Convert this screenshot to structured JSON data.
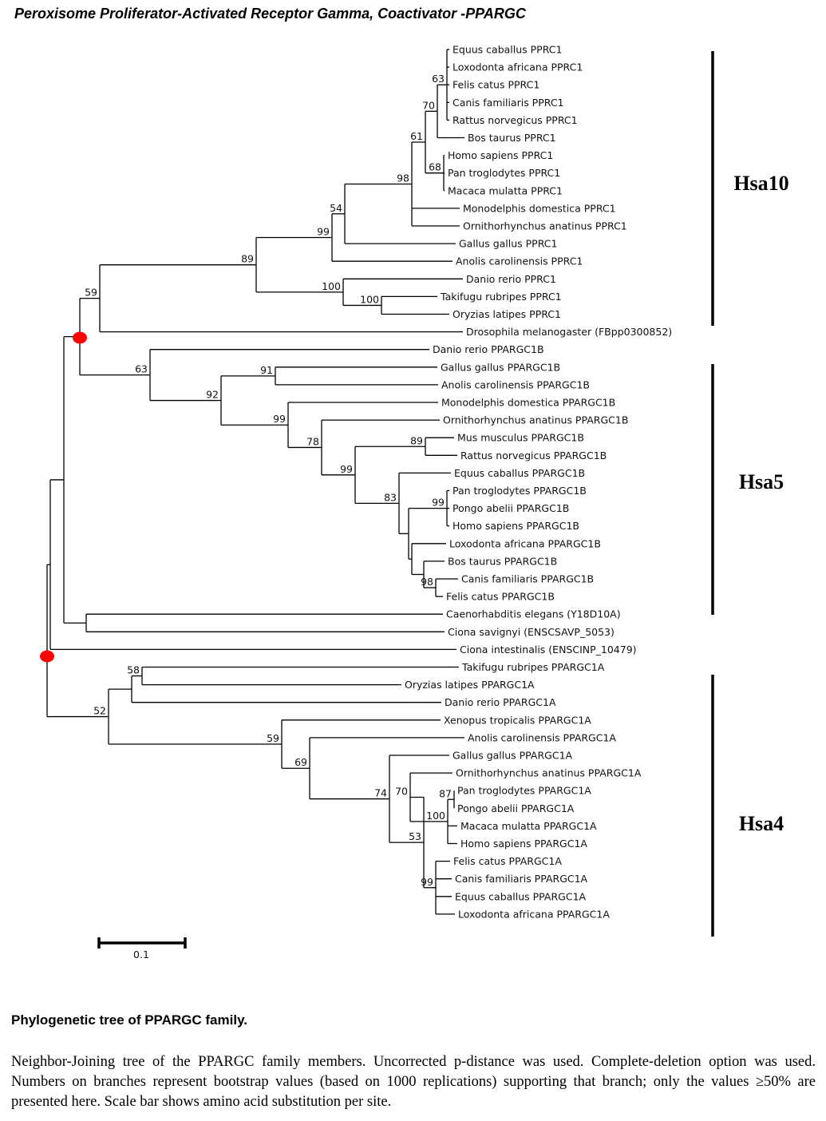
{
  "title": "Peroxisome Proliferator-Activated Receptor Gamma, Coactivator -PPARGC",
  "leaves": [
    "Equus caballus PPRC1",
    "Loxodonta africana PPRC1",
    "Felis catus PPRC1",
    "Canis familiaris PPRC1",
    "Rattus norvegicus PPRC1",
    "Bos taurus PPRC1",
    "Homo sapiens PPRC1",
    "Pan troglodytes PPRC1",
    "Macaca mulatta PPRC1",
    "Monodelphis domestica PPRC1",
    "Ornithorhynchus anatinus PPRC1",
    "Gallus gallus PPRC1",
    "Anolis carolinensis PPRC1",
    "Danio rerio PPRC1",
    "Takifugu rubripes PPRC1",
    "Oryzias latipes PPRC1",
    "Drosophila melanogaster (FBpp0300852)",
    "Danio rerio PPARGC1B",
    "Gallus gallus PPARGC1B",
    "Anolis carolinensis PPARGC1B",
    "Monodelphis domestica PPARGC1B",
    "Ornithorhynchus anatinus PPARGC1B",
    "Mus musculus PPARGC1B",
    "Rattus norvegicus PPARGC1B",
    "Equus caballus PPARGC1B",
    "Pan troglodytes PPARGC1B",
    "Pongo abelii PPARGC1B",
    "Homo sapiens PPARGC1B",
    "Loxodonta africana PPARGC1B",
    "Bos taurus PPARGC1B",
    "Canis familiaris PPARGC1B",
    "Felis catus PPARGC1B",
    "Caenorhabditis elegans  (Y18D10A)",
    "Ciona savignyi (ENSCSAVP_5053)",
    "Ciona intestinalis (ENSCINP_10479)",
    "Takifugu rubripes PPARGC1A",
    "Oryzias latipes PPARGC1A",
    "Danio rerio PPARGC1A",
    "Xenopus tropicalis PPARGC1A",
    "Anolis carolinensis PPARGC1A",
    "Gallus gallus PPARGC1A",
    "Ornithorhynchus anatinus PPARGC1A",
    "Pan troglodytes PPARGC1A",
    "Pongo abelii PPARGC1A",
    "Macaca mulatta PPARGC1A",
    "Homo sapiens PPARGC1A",
    "Felis catus PPARGC1A",
    "Canis familiaris PPARGC1A",
    "Equus caballus PPARGC1A",
    "Loxodonta africana PPARGC1A"
  ],
  "bootstrap": [
    "63",
    "70",
    "68",
    "61",
    "98",
    "54",
    "99",
    "100",
    "100",
    "89",
    "59",
    "91",
    "89",
    "99",
    "98",
    "83",
    "99",
    "78",
    "99",
    "92",
    "63",
    "58",
    "87",
    "100",
    "70",
    "99",
    "53",
    "74",
    "69",
    "59",
    "52"
  ],
  "clades": [
    "Hsa10",
    "Hsa5",
    "Hsa4"
  ],
  "scale_label": "0.1",
  "colors": {
    "duplication_marker": "#ff0000",
    "line": "#000000"
  },
  "caption": {
    "heading": "Phylogenetic tree of PPARGC family.",
    "body": "Neighbor-Joining tree of the  PPARGC family members. Uncorrected p-distance was used. Complete-deletion option was used. Numbers on branches represent bootstrap values (based on 1000 replications) supporting that branch; only the values ≥50% are presented here. Scale bar shows amino acid substitution per site."
  }
}
